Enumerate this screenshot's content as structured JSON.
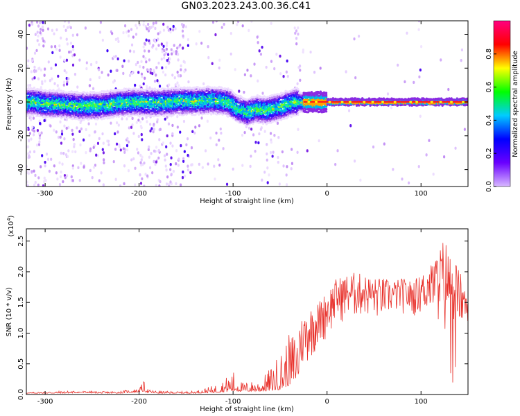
{
  "title": "GN03.2023.243.00.36.C41",
  "chart_data": [
    {
      "type": "heatmap",
      "xlabel": "Height of straight line (km)",
      "ylabel": "Frequency (Hz)",
      "xlim": [
        -320,
        150
      ],
      "ylim": [
        -50,
        48
      ],
      "x_ticks": [
        -300,
        -200,
        -100,
        0,
        100
      ],
      "x_tick_labels": [
        "-300",
        "-200",
        "-100",
        "0",
        "100"
      ],
      "y_ticks": [
        -40,
        -20,
        0,
        20,
        40
      ],
      "y_tick_labels": [
        "-40",
        "-20",
        "0",
        "20",
        "40"
      ],
      "colorbar": {
        "label": "Normalized spectral amplitude",
        "range": [
          0,
          1
        ],
        "ticks": [
          0.0,
          0.2,
          0.4,
          0.6,
          0.8
        ],
        "tick_labels": [
          "0.0",
          "0.2",
          "0.4",
          "0.6",
          "0.8"
        ],
        "colormap": [
          "#ffffff",
          "#d8b8ff",
          "#6a00ff",
          "#0000ff",
          "#00ccff",
          "#00ff00",
          "#ffff00",
          "#ff0000",
          "#ff0080"
        ]
      },
      "ridge": [
        {
          "x": -315,
          "f": 0.5
        },
        {
          "x": -300,
          "f": -1.0
        },
        {
          "x": -280,
          "f": -1.5
        },
        {
          "x": -260,
          "f": -2.5
        },
        {
          "x": -240,
          "f": -2.0
        },
        {
          "x": -220,
          "f": -0.5
        },
        {
          "x": -200,
          "f": 0.0
        },
        {
          "x": -180,
          "f": -0.5
        },
        {
          "x": -160,
          "f": 0.5
        },
        {
          "x": -140,
          "f": 0.5
        },
        {
          "x": -120,
          "f": 1.0
        },
        {
          "x": -105,
          "f": 0.0
        },
        {
          "x": -95,
          "f": -4.0
        },
        {
          "x": -85,
          "f": -6.0
        },
        {
          "x": -75,
          "f": -4.0
        },
        {
          "x": -65,
          "f": -5.0
        },
        {
          "x": -55,
          "f": -3.5
        },
        {
          "x": -45,
          "f": -2.0
        },
        {
          "x": -35,
          "f": 0.0
        },
        {
          "x": -25,
          "f": 0.0
        },
        {
          "x": 0,
          "f": 0.0
        },
        {
          "x": 150,
          "f": 0.0
        }
      ]
    },
    {
      "type": "line",
      "xlabel": "Height of straight line (km)",
      "ylabel": "SNR (10 * v/v)",
      "y_exponent_label": "(x10",
      "y_exponent_power": "4",
      "y_exponent_close": ")",
      "xlim": [
        -320,
        150
      ],
      "ylim": [
        0,
        2.7
      ],
      "x_ticks": [
        -300,
        -200,
        -100,
        0,
        100
      ],
      "x_tick_labels": [
        "-300",
        "-200",
        "-100",
        "0",
        "100"
      ],
      "y_ticks": [
        0.0,
        0.5,
        1.0,
        1.5,
        2.0,
        2.5
      ],
      "y_tick_labels": [
        "0.0",
        "0.5",
        "1.0",
        "1.5",
        "2.0",
        "2.5"
      ],
      "series": [
        {
          "color": "#e8302a",
          "envelope_x": [
            -320,
            -300,
            -280,
            -260,
            -240,
            -220,
            -200,
            -195,
            -190,
            -180,
            -160,
            -140,
            -120,
            -110,
            -100,
            -90,
            -80,
            -70,
            -60,
            -50,
            -40,
            -30,
            -20,
            -10,
            0,
            10,
            20,
            30,
            40,
            50,
            60,
            70,
            80,
            90,
            100,
            110,
            120,
            125,
            130,
            140,
            150
          ],
          "envelope_y": [
            0.03,
            0.05,
            0.06,
            0.06,
            0.05,
            0.06,
            0.1,
            0.22,
            0.08,
            0.06,
            0.05,
            0.06,
            0.15,
            0.25,
            0.4,
            0.2,
            0.22,
            0.25,
            0.45,
            0.7,
            1.0,
            1.2,
            1.4,
            1.5,
            1.7,
            1.9,
            1.95,
            2.0,
            1.95,
            1.9,
            1.9,
            1.85,
            1.9,
            1.85,
            1.95,
            2.1,
            2.4,
            2.6,
            2.3,
            2.1,
            1.5
          ],
          "baseline_y": [
            0.02,
            0.02,
            0.02,
            0.03,
            0.02,
            0.02,
            0.04,
            0.05,
            0.03,
            0.02,
            0.02,
            0.02,
            0.03,
            0.04,
            0.05,
            0.05,
            0.05,
            0.05,
            0.06,
            0.08,
            0.15,
            0.3,
            0.5,
            0.7,
            0.9,
            1.1,
            1.2,
            1.2,
            1.25,
            1.2,
            1.2,
            1.3,
            1.3,
            1.25,
            1.3,
            1.3,
            1.1,
            0.8,
            1.2,
            1.0,
            1.2
          ]
        }
      ]
    }
  ]
}
